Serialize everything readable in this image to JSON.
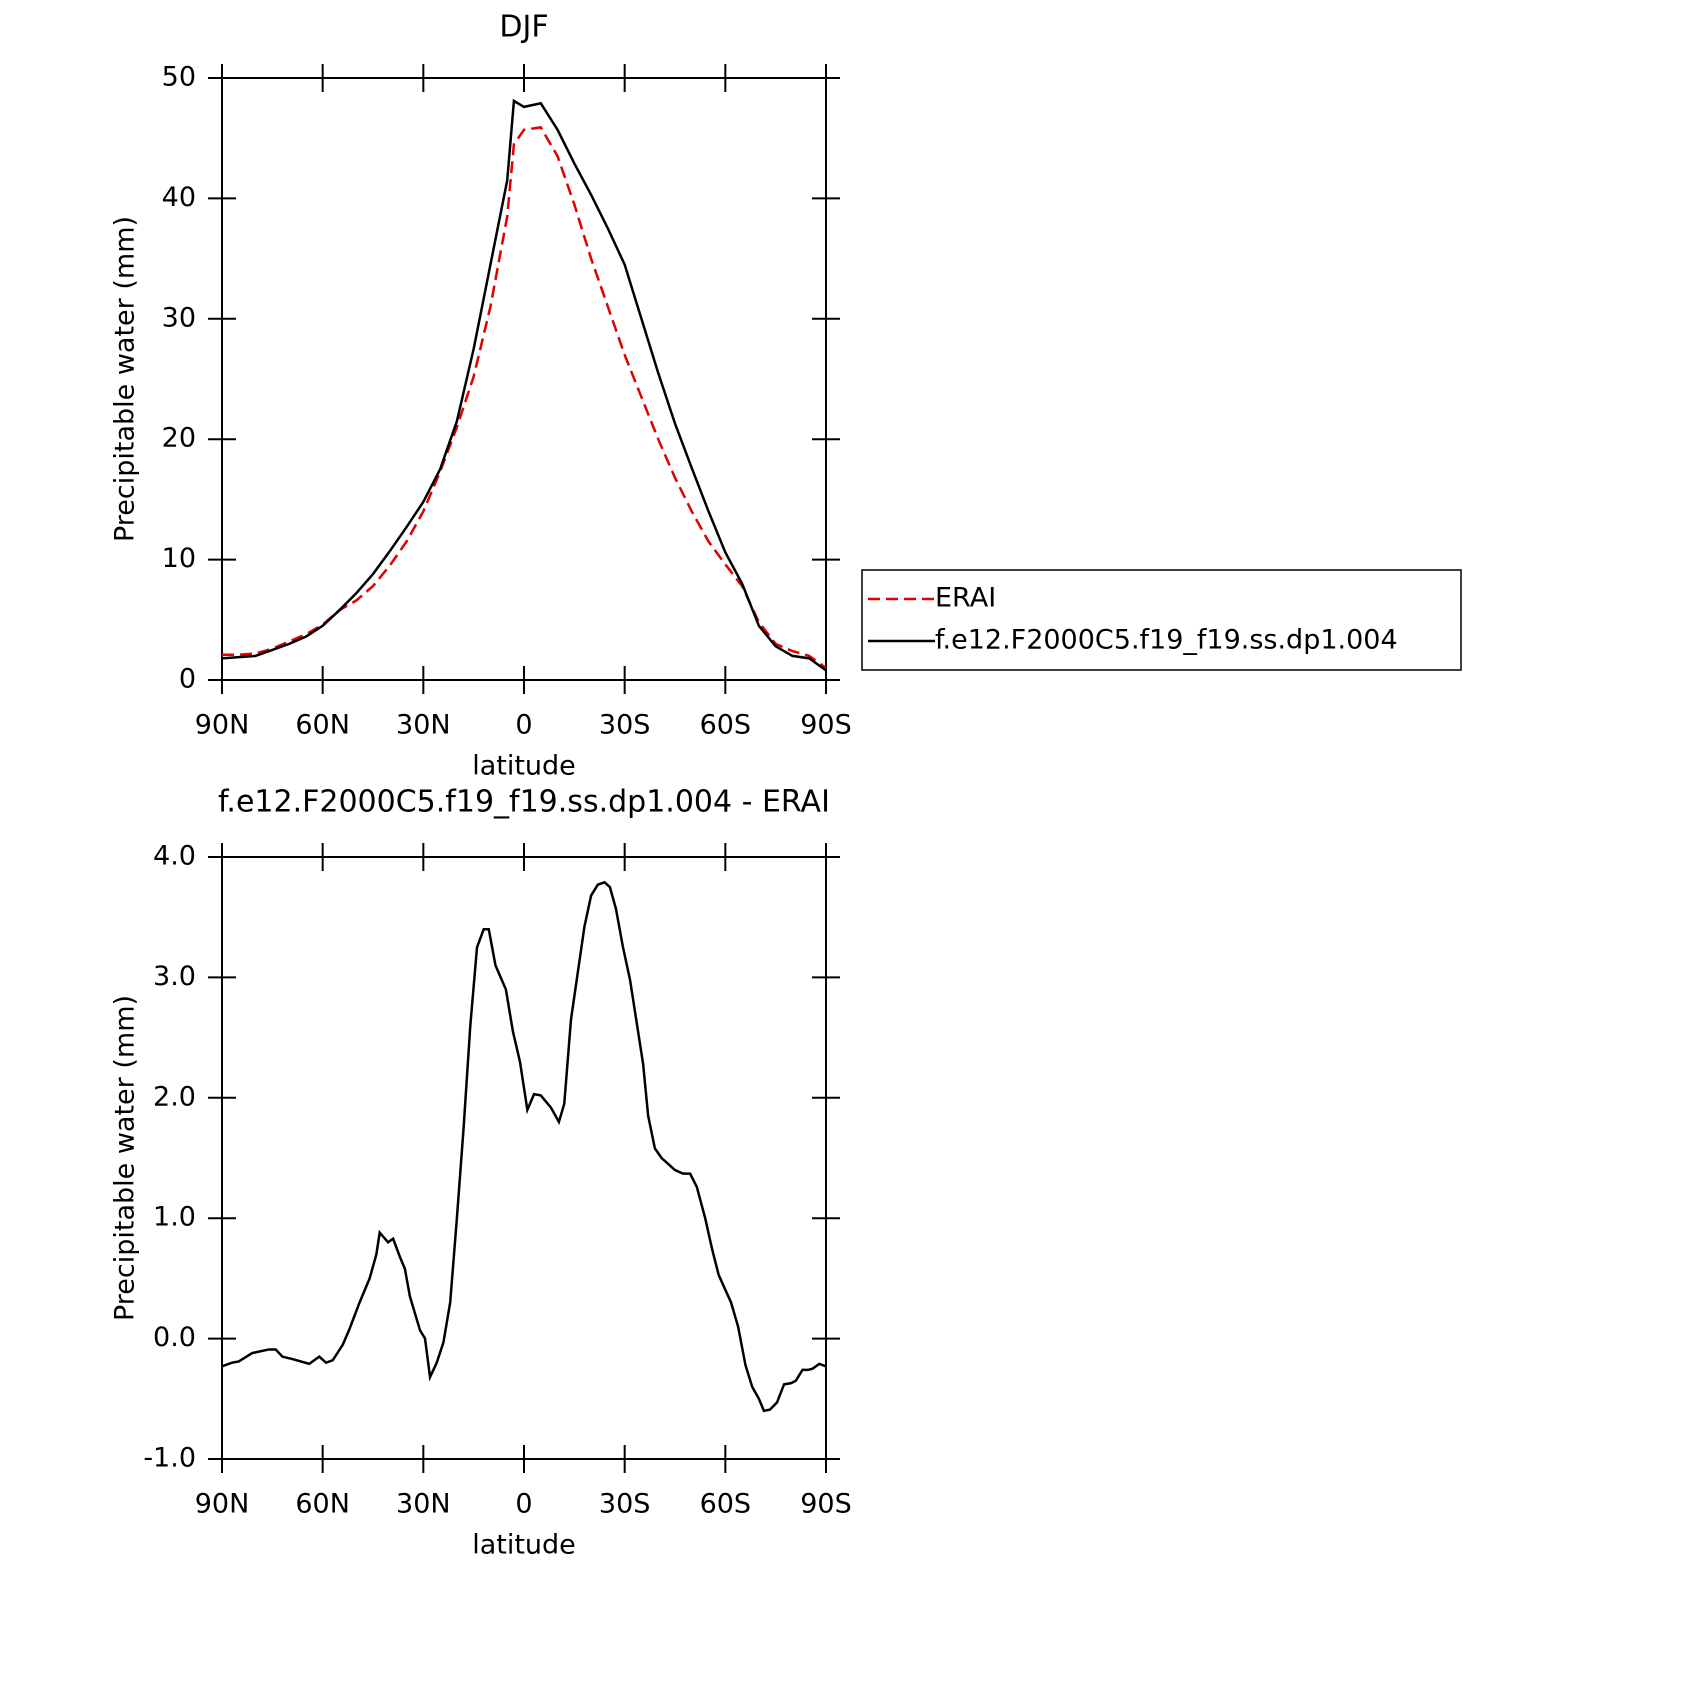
{
  "chart_data": [
    {
      "type": "line",
      "title": "DJF",
      "x_label": "latitude",
      "y_label": "Precipitable water (mm)",
      "x": [
        90,
        85,
        80,
        75,
        70,
        65,
        60,
        55,
        50,
        45,
        40,
        35,
        30,
        25,
        20,
        15,
        10,
        5,
        3,
        0,
        -5,
        -10,
        -15,
        -20,
        -25,
        -30,
        -35,
        -40,
        -45,
        -50,
        -55,
        -60,
        -65,
        -70,
        -75,
        -80,
        -85,
        -90
      ],
      "series": [
        {
          "name": "ERAI",
          "color": "#e00000",
          "line_style": "dashed",
          "values": [
            2.1,
            2.1,
            2.2,
            2.6,
            3.2,
            3.8,
            4.6,
            5.8,
            6.6,
            7.8,
            9.5,
            11.5,
            14.0,
            17.3,
            21.0,
            25.2,
            31.0,
            38.5,
            44.5,
            45.7,
            45.9,
            43.5,
            39.5,
            35.0,
            31.0,
            27.0,
            23.5,
            20.0,
            16.8,
            14.0,
            11.5,
            9.6,
            7.8,
            4.8,
            3.0,
            2.4,
            2.0,
            1.0
          ]
        },
        {
          "name": "f.e12.F2000C5.f19_f19.ss.dp1.004",
          "color": "#000000",
          "line_style": "solid",
          "values": [
            1.8,
            1.9,
            2.0,
            2.5,
            3.0,
            3.6,
            4.5,
            5.8,
            7.2,
            8.8,
            10.7,
            12.7,
            14.8,
            17.5,
            21.5,
            27.5,
            34.5,
            41.5,
            48.1,
            47.6,
            47.9,
            45.7,
            42.9,
            40.3,
            37.5,
            34.5,
            30.0,
            25.5,
            21.3,
            17.6,
            14.0,
            10.6,
            8.0,
            4.5,
            2.8,
            2.0,
            1.8,
            0.8
          ]
        }
      ],
      "xlim": [
        90,
        -90
      ],
      "xticks": [
        {
          "value": 90,
          "label": "90N"
        },
        {
          "value": 60,
          "label": "60N"
        },
        {
          "value": 30,
          "label": "30N"
        },
        0,
        {
          "value": -30,
          "label": "30S"
        },
        {
          "value": -60,
          "label": "60S"
        },
        {
          "value": -90,
          "label": "90S"
        }
      ],
      "ylim": [
        0,
        50
      ],
      "yticks": [
        0,
        10,
        20,
        30,
        40,
        50
      ],
      "legend": "right"
    },
    {
      "type": "line",
      "title": "f.e12.F2000C5.f19_f19.ss.dp1.004 - ERAI",
      "x_label": "latitude",
      "y_label": "Precipitable water (mm)",
      "color": "#000000",
      "x": [
        90,
        87,
        85,
        81,
        76,
        74,
        72,
        69,
        64,
        61,
        59,
        57,
        54,
        52,
        49,
        46,
        44,
        43,
        40.5,
        39,
        37,
        35.5,
        34,
        31,
        29.5,
        28,
        26,
        24,
        22,
        20,
        18,
        16,
        14,
        12,
        10.5,
        8.5,
        5.4,
        3.3,
        1.2,
        -1,
        -3,
        -5,
        -8,
        -10.4,
        -12,
        -14,
        -18,
        -20,
        -22,
        -24,
        -25.6,
        -27.4,
        -29.5,
        -31.6,
        -35.5,
        -37,
        -39,
        -41,
        -45,
        -47.4,
        -49.5,
        -51.5,
        -54,
        -56,
        -58,
        -61.7,
        -63.8,
        -66,
        -68,
        -70,
        -71.5,
        -73.3,
        -75.4,
        -77.5,
        -79.6,
        -81,
        -83,
        -84.6,
        -86,
        -88,
        -90
      ],
      "values": [
        -0.23,
        -0.2,
        -0.19,
        -0.12,
        -0.09,
        -0.09,
        -0.15,
        -0.17,
        -0.21,
        -0.15,
        -0.2,
        -0.18,
        -0.05,
        0.08,
        0.3,
        0.5,
        0.7,
        0.88,
        0.8,
        0.83,
        0.68,
        0.58,
        0.35,
        0.07,
        0,
        -0.32,
        -0.2,
        -0.03,
        0.3,
        1.0,
        1.75,
        2.6,
        3.25,
        3.4,
        3.4,
        3.1,
        2.9,
        2.55,
        2.3,
        1.9,
        2.03,
        2.02,
        1.92,
        1.8,
        1.95,
        2.65,
        3.42,
        3.68,
        3.77,
        3.79,
        3.75,
        3.57,
        3.25,
        2.98,
        2.28,
        1.85,
        1.58,
        1.5,
        1.4,
        1.37,
        1.37,
        1.26,
        1.0,
        0.75,
        0.53,
        0.3,
        0.1,
        -0.22,
        -0.4,
        -0.5,
        -0.6,
        -0.59,
        -0.53,
        -0.38,
        -0.37,
        -0.35,
        -0.26,
        -0.26,
        -0.25,
        -0.21,
        -0.23
      ],
      "xlim": [
        90,
        -90
      ],
      "xticks": [
        {
          "value": 90,
          "label": "90N"
        },
        {
          "value": 60,
          "label": "60N"
        },
        {
          "value": 30,
          "label": "30N"
        },
        0,
        {
          "value": -30,
          "label": "30S"
        },
        {
          "value": -60,
          "label": "60S"
        },
        {
          "value": -90,
          "label": "90S"
        }
      ],
      "ylim": [
        -1,
        4
      ],
      "yticks": [
        {
          "value": -1,
          "label": "-1.0"
        },
        {
          "value": 0,
          "label": "0.0"
        },
        {
          "value": 1,
          "label": "1.0"
        },
        {
          "value": 2,
          "label": "2.0"
        },
        {
          "value": 3,
          "label": "3.0"
        },
        {
          "value": 4,
          "label": "4.0"
        }
      ]
    }
  ]
}
